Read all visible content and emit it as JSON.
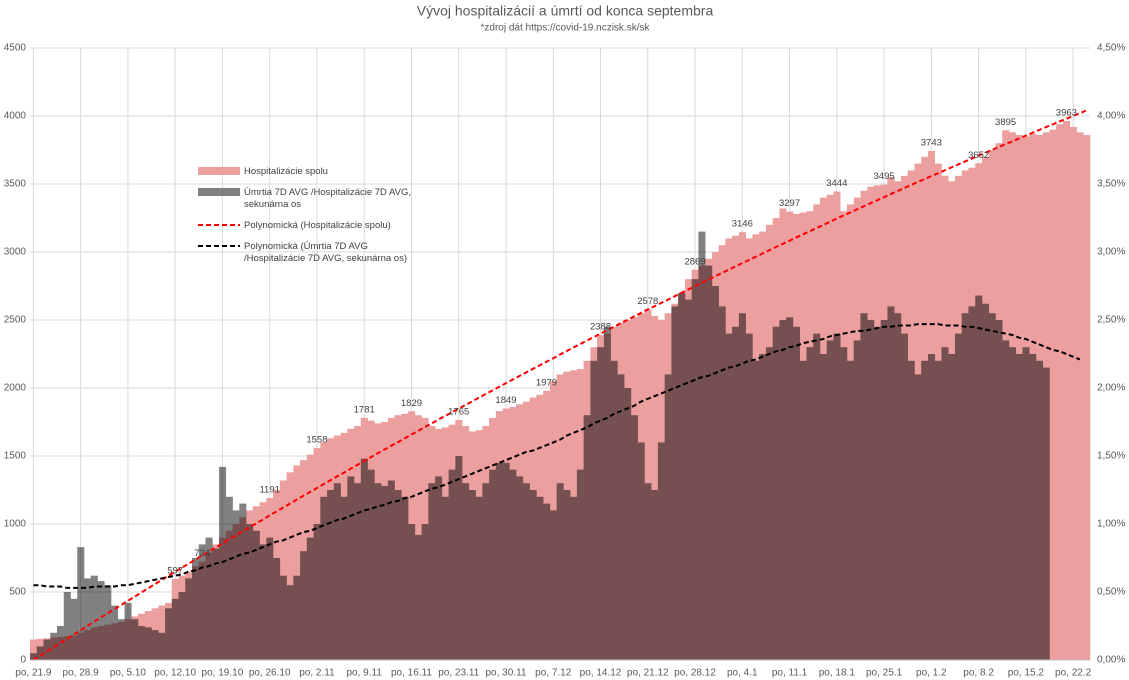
{
  "chart_data": {
    "type": "bar",
    "title": "Vývoj hospitalizácií a úmrtí od konca septembra",
    "subtitle": "*zdroj dát https://covid-19.nczisk.sk/sk",
    "categories": [
      "po, 21.9",
      null,
      null,
      null,
      null,
      null,
      null,
      "po, 28.9",
      null,
      null,
      null,
      null,
      null,
      null,
      "po, 5.10",
      null,
      null,
      null,
      null,
      null,
      null,
      "po, 12.10",
      null,
      null,
      null,
      null,
      null,
      null,
      "po, 19.10",
      null,
      null,
      null,
      null,
      null,
      null,
      "po, 26.10",
      null,
      null,
      null,
      null,
      null,
      null,
      "po, 2.11",
      null,
      null,
      null,
      null,
      null,
      null,
      "po, 9.11",
      null,
      null,
      null,
      null,
      null,
      null,
      "po, 16.11",
      null,
      null,
      null,
      null,
      null,
      null,
      "po, 23.11",
      null,
      null,
      null,
      null,
      null,
      null,
      "po, 30.11",
      null,
      null,
      null,
      null,
      null,
      null,
      "po, 7.12",
      null,
      null,
      null,
      null,
      null,
      null,
      "po, 14.12",
      null,
      null,
      null,
      null,
      null,
      null,
      "po, 21.12",
      null,
      null,
      null,
      null,
      null,
      null,
      "po, 28.12",
      null,
      null,
      null,
      null,
      null,
      null,
      "po, 4.1",
      null,
      null,
      null,
      null,
      null,
      null,
      "po, 11.1",
      null,
      null,
      null,
      null,
      null,
      null,
      "po, 18.1",
      null,
      null,
      null,
      null,
      null,
      null,
      "po, 25.1",
      null,
      null,
      null,
      null,
      null,
      null,
      "po, 1.2",
      null,
      null,
      null,
      null,
      null,
      null,
      "po, 8.2",
      null,
      null,
      null,
      null,
      null,
      null,
      "po, 15.2",
      null,
      null,
      null,
      null,
      null,
      null,
      "po, 22.2",
      null,
      null
    ],
    "series": [
      {
        "name": "Hospitalizácie spolu",
        "color": "#eb9f9f",
        "values": [
          150,
          155,
          160,
          165,
          170,
          175,
          180,
          200,
          220,
          240,
          250,
          260,
          270,
          280,
          300,
          320,
          340,
          360,
          380,
          400,
          420,
          597,
          620,
          650,
          690,
          724,
          790,
          850,
          900,
          950,
          1000,
          1050,
          1100,
          1130,
          1160,
          1191,
          1250,
          1320,
          1380,
          1430,
          1470,
          1510,
          1558,
          1600,
          1630,
          1650,
          1670,
          1700,
          1720,
          1781,
          1760,
          1740,
          1750,
          1780,
          1800,
          1810,
          1829,
          1800,
          1780,
          1720,
          1700,
          1710,
          1730,
          1765,
          1720,
          1680,
          1690,
          1720,
          1780,
          1830,
          1849,
          1860,
          1880,
          1900,
          1930,
          1950,
          1979,
          2050,
          2100,
          2120,
          2130,
          2140,
          2200,
          2300,
          2388,
          2400,
          2450,
          2480,
          2500,
          2520,
          2550,
          2578,
          2530,
          2500,
          2550,
          2620,
          2700,
          2800,
          2869,
          2900,
          2950,
          3000,
          3050,
          3100,
          3120,
          3146,
          3100,
          3130,
          3150,
          3200,
          3250,
          3320,
          3297,
          3280,
          3290,
          3300,
          3350,
          3400,
          3420,
          3444,
          3300,
          3350,
          3400,
          3450,
          3480,
          3490,
          3495,
          3550,
          3520,
          3560,
          3600,
          3650,
          3700,
          3743,
          3650,
          3560,
          3520,
          3560,
          3600,
          3620,
          3652,
          3700,
          3750,
          3800,
          3895,
          3880,
          3860,
          3850,
          3870,
          3860,
          3880,
          3900,
          3940,
          3963,
          3920,
          3880,
          3860
        ],
        "value_labels": [
          null,
          null,
          null,
          null,
          null,
          null,
          null,
          null,
          null,
          null,
          null,
          null,
          null,
          null,
          null,
          null,
          null,
          null,
          null,
          null,
          null,
          "597",
          null,
          null,
          null,
          "724",
          null,
          null,
          null,
          null,
          null,
          null,
          null,
          null,
          null,
          "1191",
          null,
          null,
          null,
          null,
          null,
          null,
          "1558",
          null,
          null,
          null,
          null,
          null,
          null,
          "1781",
          null,
          null,
          null,
          null,
          null,
          null,
          "1829",
          null,
          null,
          null,
          null,
          null,
          null,
          "1765",
          null,
          null,
          null,
          null,
          null,
          null,
          "1849",
          null,
          null,
          null,
          null,
          null,
          "1979",
          null,
          null,
          null,
          null,
          null,
          null,
          null,
          "2388",
          null,
          null,
          null,
          null,
          null,
          null,
          "2578",
          null,
          null,
          null,
          null,
          null,
          null,
          "2869",
          null,
          null,
          null,
          null,
          null,
          null,
          "3146",
          null,
          null,
          null,
          null,
          null,
          null,
          "3297",
          null,
          null,
          null,
          null,
          null,
          null,
          "3444",
          null,
          null,
          null,
          null,
          null,
          null,
          "3495",
          null,
          null,
          null,
          null,
          null,
          null,
          "3743",
          null,
          null,
          null,
          null,
          null,
          null,
          "3652",
          null,
          null,
          null,
          "3895",
          null,
          null,
          null,
          null,
          null,
          null,
          null,
          null,
          "3963",
          null,
          null,
          null
        ]
      },
      {
        "name": "Úmrtia 7D AVG /Hospitalizácie 7D AVG, sekunárna os",
        "color": "#808080",
        "axis": "y2",
        "values": [
          0.05,
          0.1,
          0.15,
          0.2,
          0.25,
          0.5,
          0.45,
          0.83,
          0.6,
          0.62,
          0.58,
          0.55,
          0.4,
          0.3,
          0.42,
          0.3,
          0.25,
          0.24,
          0.22,
          0.2,
          0.38,
          0.45,
          0.5,
          0.6,
          0.75,
          0.85,
          0.9,
          0.82,
          1.42,
          1.2,
          1.1,
          1.15,
          1,
          0.95,
          0.85,
          0.9,
          0.75,
          0.62,
          0.55,
          0.62,
          0.8,
          0.9,
          1,
          1.2,
          1.25,
          1.3,
          1.2,
          1.35,
          1.3,
          1.48,
          1.4,
          1.3,
          1.28,
          1.32,
          1.25,
          1.2,
          1,
          0.92,
          1,
          1.3,
          1.35,
          1.2,
          1.4,
          1.5,
          1.3,
          1.25,
          1.2,
          1.3,
          1.4,
          1.45,
          1.45,
          1.4,
          1.35,
          1.3,
          1.25,
          1.2,
          1.15,
          1.1,
          1.3,
          1.25,
          1.2,
          1.4,
          1.8,
          2.2,
          2.3,
          2.45,
          2.2,
          2.1,
          2,
          1.8,
          1.6,
          1.3,
          1.25,
          1.6,
          2.1,
          2.6,
          2.7,
          2.65,
          2.8,
          3.15,
          2.9,
          2.75,
          2.6,
          2.4,
          2.45,
          2.55,
          2.4,
          2.2,
          2.25,
          2.3,
          2.45,
          2.5,
          2.52,
          2.45,
          2.2,
          2.3,
          2.4,
          2.25,
          2.35,
          2.4,
          2.3,
          2.2,
          2.35,
          2.55,
          2.5,
          2.45,
          2.5,
          2.6,
          2.55,
          2.4,
          2.2,
          2.1,
          2.2,
          2.25,
          2.2,
          2.3,
          2.25,
          2.4,
          2.55,
          2.6,
          2.68,
          2.62,
          2.55,
          2.5,
          2.35,
          2.3,
          2.25,
          2.3,
          2.25,
          2.2,
          2.15,
          null,
          null,
          null,
          null,
          null,
          null
        ]
      },
      {
        "name": "Polynomická (Hospitalizácie spolu)",
        "type": "line",
        "dashed": true,
        "color": "#ff0000",
        "values": [
          0,
          31,
          63,
          94,
          125,
          157,
          188,
          219,
          250,
          282,
          313,
          344,
          374,
          405,
          435,
          466,
          497,
          527,
          558,
          588,
          619,
          649,
          679,
          708,
          738,
          768,
          798,
          828,
          857,
          887,
          917,
          946,
          975,
          1004,
          1033,
          1063,
          1092,
          1121,
          1150,
          1179,
          1208,
          1236,
          1265,
          1293,
          1322,
          1350,
          1378,
          1407,
          1435,
          1464,
          1492,
          1520,
          1547,
          1575,
          1602,
          1630,
          1658,
          1685,
          1713,
          1740,
          1768,
          1795,
          1822,
          1848,
          1875,
          1902,
          1929,
          1956,
          1982,
          2009,
          2036,
          2062,
          2088,
          2115,
          2141,
          2167,
          2193,
          2219,
          2246,
          2272,
          2298,
          2323,
          2349,
          2374,
          2400,
          2425,
          2450,
          2476,
          2501,
          2527,
          2552,
          2577,
          2601,
          2626,
          2650,
          2675,
          2700,
          2724,
          2749,
          2773,
          2798,
          2822,
          2846,
          2870,
          2894,
          2918,
          2941,
          2965,
          2989,
          3013,
          3037,
          3060,
          3083,
          3107,
          3130,
          3153,
          3176,
          3199,
          3223,
          3246,
          3269,
          3291,
          3314,
          3336,
          3359,
          3381,
          3403,
          3426,
          3448,
          3471,
          3493,
          3515,
          3536,
          3558,
          3579,
          3601,
          3623,
          3644,
          3666,
          3687,
          3709,
          3730,
          3751,
          3772,
          3793,
          3814,
          3835,
          3856,
          3877,
          3898,
          3919,
          3939,
          3960,
          3980,
          4000,
          4021,
          4041
        ]
      },
      {
        "name": "Polynomická (Úmrtia 7D AVG /Hospitalizácie 7D AVG, sekunárna os)",
        "type": "line",
        "dashed": true,
        "axis": "y2",
        "color": "#000000",
        "values": [
          0.55,
          0.55,
          0.54,
          0.54,
          0.54,
          0.53,
          0.53,
          0.53,
          0.53,
          0.54,
          0.54,
          0.54,
          0.54,
          0.55,
          0.55,
          0.56,
          0.57,
          0.58,
          0.59,
          0.6,
          0.61,
          0.62,
          0.63,
          0.65,
          0.66,
          0.68,
          0.69,
          0.71,
          0.72,
          0.74,
          0.76,
          0.78,
          0.79,
          0.81,
          0.83,
          0.85,
          0.87,
          0.88,
          0.9,
          0.92,
          0.94,
          0.95,
          0.97,
          0.99,
          1.01,
          1.03,
          1.04,
          1.06,
          1.08,
          1.1,
          1.11,
          1.13,
          1.14,
          1.16,
          1.17,
          1.19,
          1.2,
          1.22,
          1.24,
          1.26,
          1.27,
          1.29,
          1.31,
          1.33,
          1.35,
          1.37,
          1.39,
          1.41,
          1.43,
          1.45,
          1.47,
          1.49,
          1.51,
          1.53,
          1.54,
          1.56,
          1.58,
          1.6,
          1.62,
          1.65,
          1.67,
          1.69,
          1.71,
          1.74,
          1.76,
          1.78,
          1.81,
          1.83,
          1.85,
          1.87,
          1.9,
          1.92,
          1.94,
          1.96,
          1.98,
          2,
          2.02,
          2.04,
          2.06,
          2.08,
          2.09,
          2.11,
          2.13,
          2.15,
          2.16,
          2.18,
          2.2,
          2.21,
          2.23,
          2.25,
          2.27,
          2.28,
          2.3,
          2.31,
          2.33,
          2.34,
          2.35,
          2.36,
          2.38,
          2.39,
          2.4,
          2.41,
          2.42,
          2.42,
          2.43,
          2.44,
          2.45,
          2.45,
          2.46,
          2.46,
          2.46,
          2.47,
          2.47,
          2.47,
          2.47,
          2.46,
          2.46,
          2.46,
          2.45,
          2.45,
          2.44,
          2.43,
          2.42,
          2.41,
          2.4,
          2.39,
          2.37,
          2.36,
          2.34,
          2.32,
          2.3,
          2.28,
          2.27,
          2.25,
          2.23,
          2.21,
          null
        ]
      }
    ],
    "ylim": [
      0,
      4500
    ],
    "yticks": [
      0,
      500,
      1000,
      1500,
      2000,
      2500,
      3000,
      3500,
      4000,
      4500
    ],
    "y2lim": [
      0,
      4.5
    ],
    "y2ticks": [
      {
        "value": 0,
        "label": "0,00%"
      },
      {
        "value": 0.5,
        "label": "0,50%"
      },
      {
        "value": 1,
        "label": "1,00%"
      },
      {
        "value": 1.5,
        "label": "1,50%"
      },
      {
        "value": 2,
        "label": "2,00%"
      },
      {
        "value": 2.5,
        "label": "2,50%"
      },
      {
        "value": 3,
        "label": "3,00%"
      },
      {
        "value": 3.5,
        "label": "3,50%"
      },
      {
        "value": 4,
        "label": "4,00%"
      },
      {
        "value": 4.5,
        "label": "4,50%"
      }
    ],
    "grid": true
  }
}
